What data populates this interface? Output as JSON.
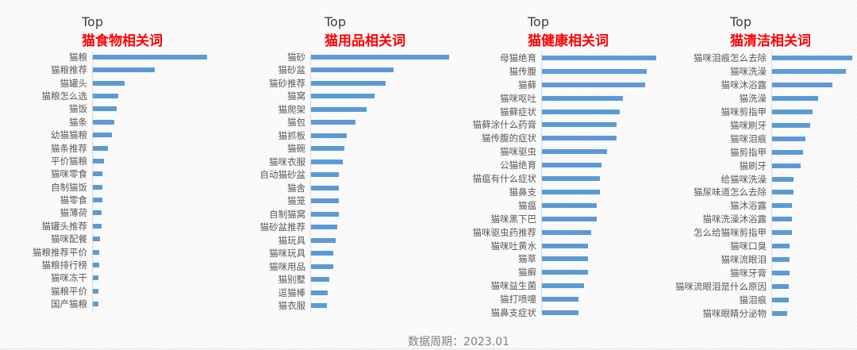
{
  "chart_data": [
    {
      "type": "bar",
      "orientation": "horizontal",
      "title_prefix": "Top",
      "title": "猫食物相关词",
      "categories": [
        "猫粮",
        "猫粮推荐",
        "猫罐头",
        "猫粮怎么选",
        "猫饭",
        "猫条",
        "幼猫猫粮",
        "猫条推荐",
        "平价猫粮",
        "猫咪零食",
        "自制猫饭",
        "猫零食",
        "猫薄荷",
        "猫罐头推荐",
        "猫咪配餐",
        "猫粮推荐平价",
        "猫粮排行榜",
        "猫咪冻干",
        "猫粮平价",
        "国产猫粮"
      ],
      "values": [
        100,
        54,
        28,
        22,
        21,
        19,
        17,
        13,
        10,
        8.5,
        8.5,
        8.3,
        7.6,
        7.6,
        6,
        5.7,
        5.7,
        5,
        5,
        4.8
      ],
      "value_unit": "relative index (max = 100)",
      "color": "#5b9bd5"
    },
    {
      "type": "bar",
      "orientation": "horizontal",
      "title_prefix": "Top",
      "title": "猫用品相关词",
      "categories": [
        "猫砂",
        "猫砂盆",
        "猫砂推荐",
        "猫窝",
        "猫爬架",
        "猫包",
        "猫抓板",
        "猫碗",
        "猫咪衣服",
        "自动猫砂盆",
        "猫舍",
        "猫笼",
        "自制猫窝",
        "猫砂盆推荐",
        "猫玩具",
        "猫咪玩具",
        "猫咪用品",
        "猫别墅",
        "逗猫棒",
        "猫衣服"
      ],
      "values": [
        100,
        60,
        54,
        46,
        40,
        32,
        26,
        24,
        23,
        20,
        20,
        20,
        20,
        19,
        18,
        16,
        16,
        13,
        12,
        11.5
      ],
      "value_unit": "relative index (max = 100)",
      "color": "#5b9bd5"
    },
    {
      "type": "bar",
      "orientation": "horizontal",
      "title_prefix": "Top",
      "title": "猫健康相关词",
      "categories": [
        "母猫绝育",
        "猫传腹",
        "猫藓",
        "猫咪呕吐",
        "猫藓症状",
        "猫藓涂什么药膏",
        "猫传腹的症状",
        "猫咪驱虫",
        "公猫绝育",
        "猫瘟有什么症状",
        "猫鼻支",
        "猫瘟",
        "猫咪黑下巴",
        "猫咪驱虫药推荐",
        "猫咪吐黄水",
        "猫草",
        "猫癣",
        "猫咪益生菌",
        "猫打喷嚏",
        "猫鼻支症状"
      ],
      "values": [
        100,
        92,
        90,
        71,
        68,
        65,
        65,
        57,
        52,
        51,
        51,
        48,
        48,
        43,
        40,
        40,
        40,
        37,
        32,
        32
      ],
      "value_unit": "relative index (max = 100)",
      "color": "#5b9bd5"
    },
    {
      "type": "bar",
      "orientation": "horizontal",
      "title_prefix": "Top",
      "title": "猫清洁相关词",
      "categories": [
        "猫咪泪痕怎么去除",
        "猫咪洗澡",
        "猫咪沐浴露",
        "猫洗澡",
        "猫咪剪指甲",
        "猫咪刷牙",
        "猫咪泪痕",
        "猫剪指甲",
        "猫刷牙",
        "给猫咪洗澡",
        "猫尿味道怎么去除",
        "猫沐浴露",
        "猫咪洗澡沐浴露",
        "怎么给猫咪剪指甲",
        "猫咪口臭",
        "猫咪流眼泪",
        "猫咪牙膏",
        "猫咪流眼泪是什么原因",
        "猫泪痕",
        "猫咪眼睛分泌物"
      ],
      "values": [
        100,
        92,
        75,
        57,
        50,
        48,
        42,
        39,
        36,
        27,
        27,
        25,
        25,
        25,
        22,
        22,
        22,
        21,
        21,
        19
      ],
      "value_unit": "relative index (max = 100)",
      "color": "#5b9bd5"
    }
  ],
  "footer": {
    "text": "数据周期：2023.01"
  }
}
